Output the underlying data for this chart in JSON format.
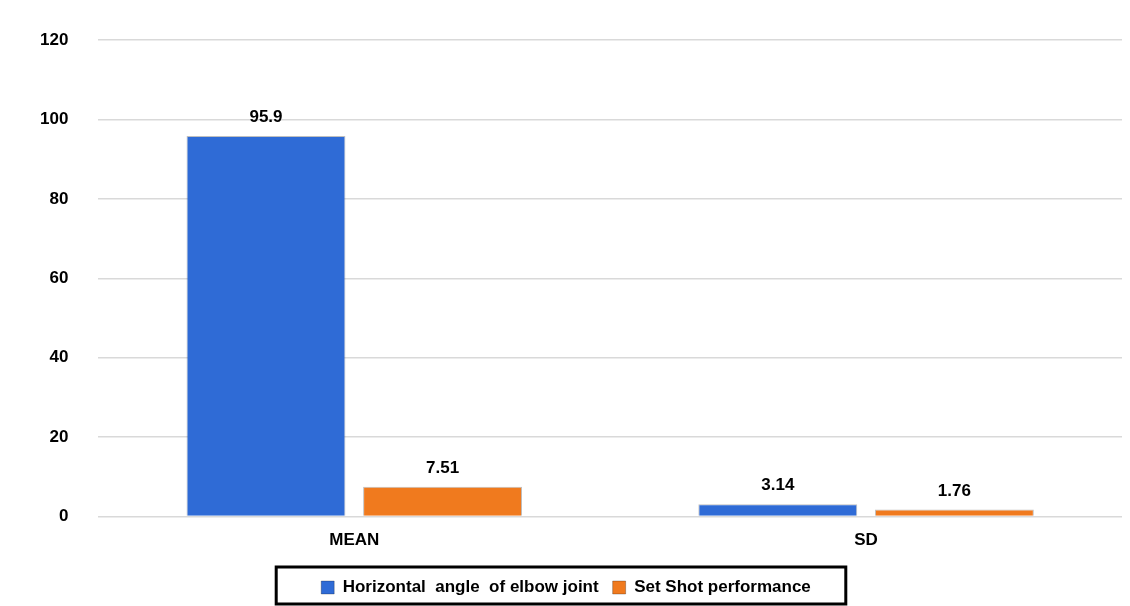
{
  "chart_data": {
    "type": "bar",
    "categories": [
      "MEAN",
      "SD"
    ],
    "series": [
      {
        "name": "Horizontal  angle  of elbow joint",
        "color": "#2f6bd6",
        "values": [
          95.9,
          3.14
        ]
      },
      {
        "name": "Set Shot performance",
        "color": "#f07a1e",
        "values": [
          7.51,
          1.76
        ]
      }
    ],
    "ylim": [
      0,
      120
    ],
    "yticks": [
      0,
      20,
      40,
      60,
      80,
      100,
      120
    ],
    "grid": "y",
    "legend": "bottom",
    "data_labels": true
  }
}
